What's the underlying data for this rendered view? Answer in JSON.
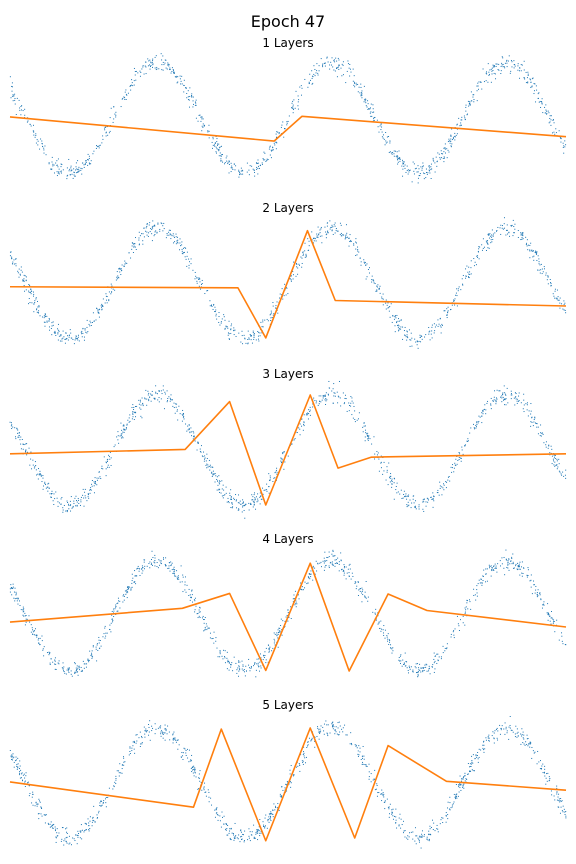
{
  "figure_title": "Epoch 47",
  "colors": {
    "data": "#1f77b4",
    "model": "#ff7f0e"
  },
  "chart_data": [
    {
      "type": "line",
      "title": "1 Layers",
      "axes_visible": false,
      "xlim": [
        -10,
        10
      ],
      "ylim": [
        -1.2,
        1.2
      ],
      "series": [
        {
          "name": "data",
          "kind": "scatter",
          "function": "sin(x)",
          "noise_sd": 0.08,
          "n_points": 1000,
          "x_range": [
            -10,
            10
          ]
        },
        {
          "name": "model",
          "kind": "line",
          "x": [
            -10,
            -0.5,
            0.5,
            10
          ],
          "y": [
            0.02,
            -0.42,
            0.03,
            -0.34
          ]
        }
      ]
    },
    {
      "type": "line",
      "title": "2 Layers",
      "axes_visible": false,
      "xlim": [
        -10,
        10
      ],
      "ylim": [
        -1.2,
        1.2
      ],
      "series": [
        {
          "name": "data",
          "kind": "scatter",
          "function": "sin(x)",
          "noise_sd": 0.08,
          "n_points": 1000,
          "x_range": [
            -10,
            10
          ]
        },
        {
          "name": "model",
          "kind": "line",
          "x": [
            -10,
            -1.8,
            -0.8,
            0.7,
            1.7,
            10
          ],
          "y": [
            -0.05,
            -0.07,
            -0.98,
            0.97,
            -0.3,
            -0.4
          ]
        }
      ]
    },
    {
      "type": "line",
      "title": "3 Layers",
      "axes_visible": false,
      "xlim": [
        -10,
        10
      ],
      "ylim": [
        -1.2,
        1.2
      ],
      "series": [
        {
          "name": "data",
          "kind": "scatter",
          "function": "sin(x)",
          "noise_sd": 0.08,
          "n_points": 1000,
          "x_range": [
            -10,
            10
          ]
        },
        {
          "name": "model",
          "kind": "line",
          "x": [
            -10,
            -3.7,
            -2.1,
            -0.8,
            0.8,
            1.8,
            3.0,
            10
          ],
          "y": [
            -0.07,
            0.01,
            0.88,
            -1.0,
            1.0,
            -0.33,
            -0.13,
            -0.07
          ]
        }
      ]
    },
    {
      "type": "line",
      "title": "4 Layers",
      "axes_visible": false,
      "xlim": [
        -10,
        10
      ],
      "ylim": [
        -1.2,
        1.2
      ],
      "series": [
        {
          "name": "data",
          "kind": "scatter",
          "function": "sin(x)",
          "noise_sd": 0.08,
          "n_points": 1000,
          "x_range": [
            -10,
            10
          ]
        },
        {
          "name": "model",
          "kind": "line",
          "x": [
            -10,
            -3.8,
            -2.1,
            -0.8,
            0.8,
            2.2,
            3.6,
            5.0,
            10
          ],
          "y": [
            -0.11,
            0.14,
            0.41,
            -0.99,
            0.96,
            -1.0,
            0.4,
            0.1,
            -0.2
          ]
        }
      ]
    },
    {
      "type": "line",
      "title": "5 Layers",
      "axes_visible": false,
      "xlim": [
        -10,
        10
      ],
      "ylim": [
        -1.2,
        1.2
      ],
      "series": [
        {
          "name": "data",
          "kind": "scatter",
          "function": "sin(x)",
          "noise_sd": 0.08,
          "n_points": 1000,
          "x_range": [
            -10,
            10
          ]
        },
        {
          "name": "model",
          "kind": "line",
          "x": [
            -10,
            -3.4,
            -2.4,
            -0.8,
            0.8,
            2.4,
            3.6,
            5.7,
            10
          ],
          "y": [
            0.02,
            -0.44,
            0.98,
            -1.05,
            1.0,
            -1.0,
            0.68,
            0.03,
            -0.13
          ]
        }
      ]
    }
  ]
}
